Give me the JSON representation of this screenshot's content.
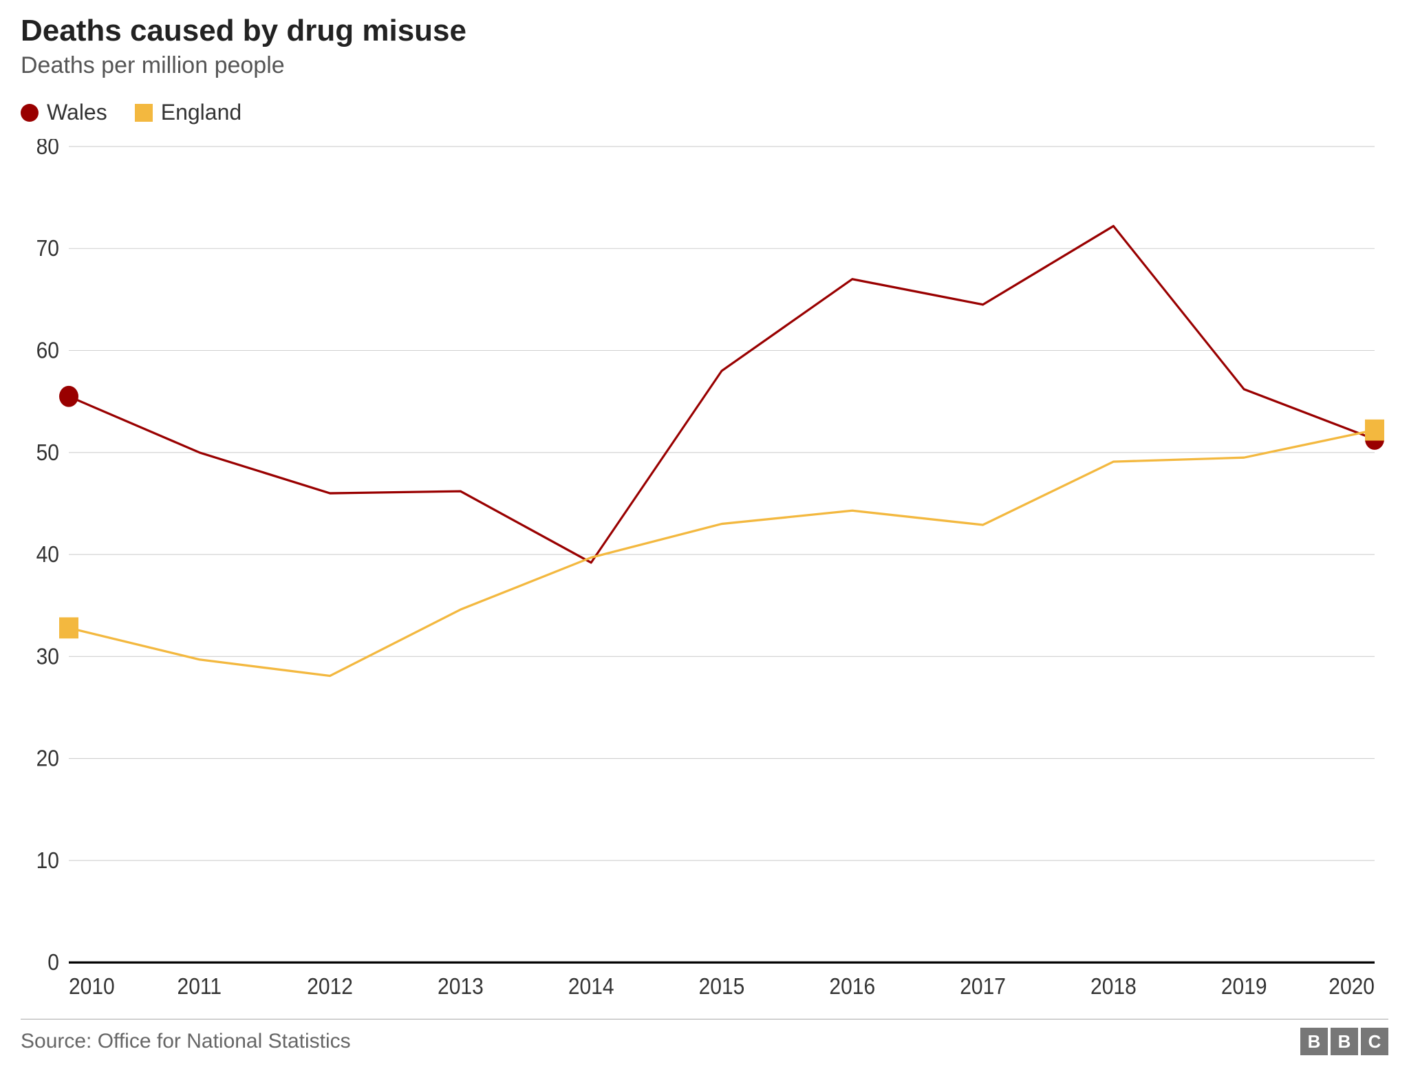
{
  "chart": {
    "type": "line",
    "title": "Deaths caused by drug misuse",
    "subtitle": "Deaths per million people",
    "title_fontsize": 44,
    "title_color": "#222222",
    "subtitle_fontsize": 34,
    "subtitle_color": "#555555",
    "background_color": "#ffffff",
    "grid_color": "#cfcfcf",
    "baseline_color": "#000000",
    "line_width": 3,
    "marker_radius": 14,
    "x": {
      "label_color": "#333333",
      "label_fontsize": 30,
      "categories": [
        "2010",
        "2011",
        "2012",
        "2013",
        "2014",
        "2015",
        "2016",
        "2017",
        "2018",
        "2019",
        "2020"
      ]
    },
    "y": {
      "min": 0,
      "max": 80,
      "tick_step": 10,
      "ticks": [
        0,
        10,
        20,
        30,
        40,
        50,
        60,
        70,
        80
      ],
      "label_color": "#333333",
      "label_fontsize": 30
    },
    "series": [
      {
        "name": "Wales",
        "color": "#990000",
        "marker": "circle",
        "values": [
          55.5,
          50.0,
          46.0,
          46.2,
          39.2,
          58.0,
          67.0,
          64.5,
          72.2,
          56.2,
          51.3
        ]
      },
      {
        "name": "England",
        "color": "#f3b83f",
        "marker": "square",
        "values": [
          32.8,
          29.7,
          28.1,
          34.6,
          39.7,
          43.0,
          44.3,
          42.9,
          49.1,
          49.5,
          52.2
        ]
      }
    ],
    "source_label": "Source: Office for National Statistics",
    "attribution": "BBC"
  }
}
